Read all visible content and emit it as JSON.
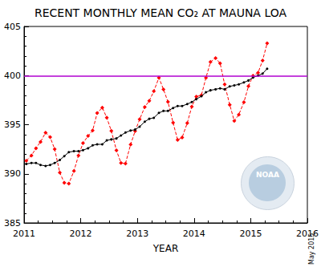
{
  "chart_data": {
    "type": "line",
    "title": "RECENT MONTHLY MEAN CO₂ AT MAUNA LOA",
    "x_label": "YEAR",
    "annotations": [
      "May 2015",
      "NOAA"
    ],
    "x": [
      2011.04,
      2011.13,
      2011.21,
      2011.29,
      2011.38,
      2011.46,
      2011.54,
      2011.63,
      2011.71,
      2011.79,
      2011.88,
      2011.96,
      2012.04,
      2012.13,
      2012.21,
      2012.29,
      2012.38,
      2012.46,
      2012.54,
      2012.63,
      2012.71,
      2012.79,
      2012.88,
      2012.96,
      2013.04,
      2013.13,
      2013.21,
      2013.29,
      2013.38,
      2013.46,
      2013.54,
      2013.63,
      2013.71,
      2013.79,
      2013.88,
      2013.96,
      2014.04,
      2014.13,
      2014.21,
      2014.29,
      2014.38,
      2014.46,
      2014.54,
      2014.63,
      2014.71,
      2014.79,
      2014.88,
      2014.96,
      2015.04,
      2015.13,
      2015.21,
      2015.29
    ],
    "series": [
      {
        "color": "#ff0000",
        "marker": "diamond",
        "line_style": "dashed",
        "values": [
          391.33,
          391.86,
          392.6,
          393.25,
          394.19,
          393.73,
          392.51,
          390.13,
          389.08,
          389.0,
          390.28,
          391.86,
          393.12,
          393.86,
          394.4,
          396.18,
          396.74,
          395.71,
          394.36,
          392.39,
          391.11,
          391.05,
          392.98,
          394.34,
          395.55,
          396.8,
          397.43,
          398.41,
          399.78,
          398.6,
          397.32,
          395.2,
          393.45,
          393.7,
          395.16,
          396.84,
          397.85,
          398.01,
          399.77,
          401.38,
          401.78,
          401.25,
          399.1,
          397.03,
          395.38,
          396.03,
          397.28,
          398.91,
          399.98,
          400.28,
          401.54,
          403.28
        ]
      },
      {
        "color": "#000000",
        "marker": "circle",
        "line_style": "solid",
        "values": [
          391.0,
          391.1,
          391.1,
          390.9,
          390.8,
          390.9,
          391.1,
          391.4,
          391.8,
          392.2,
          392.3,
          392.3,
          392.4,
          392.6,
          392.9,
          393.0,
          393.0,
          393.4,
          393.5,
          393.6,
          393.9,
          394.2,
          394.4,
          394.5,
          394.8,
          395.3,
          395.6,
          395.7,
          396.2,
          396.4,
          396.4,
          396.7,
          396.9,
          396.9,
          397.1,
          397.3,
          397.6,
          397.9,
          398.3,
          398.5,
          398.6,
          398.7,
          398.6,
          398.9,
          399.0,
          399.1,
          399.3,
          399.5,
          399.8,
          400.0,
          400.2,
          400.7
        ]
      }
    ],
    "reference_line": {
      "value": 400,
      "color": "#b000d0"
    },
    "xlim": [
      2011,
      2016
    ],
    "xticks": [
      2011,
      2012,
      2013,
      2014,
      2015,
      2016
    ],
    "ylim": [
      385,
      405
    ],
    "yticks": [
      385,
      390,
      395,
      400,
      405
    ],
    "grid": false
  }
}
